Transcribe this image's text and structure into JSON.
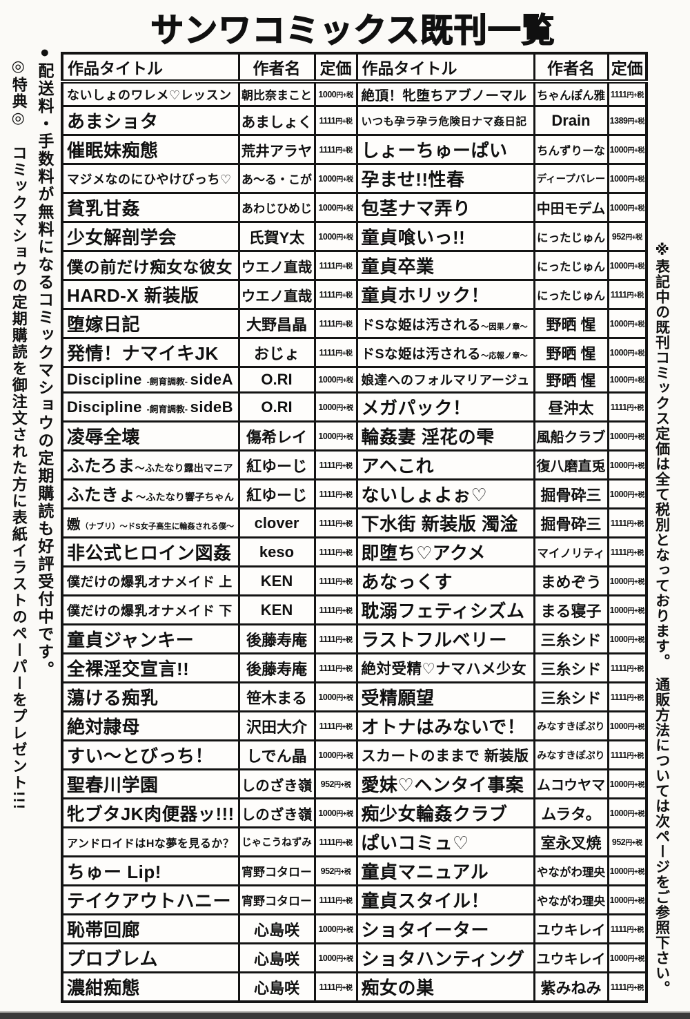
{
  "page_title": "サンワコミックス既刊一覧",
  "headers": {
    "title": "作品タイトル",
    "author": "作者名",
    "price": "定価"
  },
  "side_notes": {
    "left_inner": "●配送料・手数料が無料になるコミックマショウの定期購読も好評受付中です。",
    "left_outer": "◎特典◎　コミックマショウの定期購読を御注文された方に表紙イラストのペーパーをプレゼント!!!",
    "right": "※表記中の既刊コミックス定価は全て税別となっております。　通販方法については次ページをご参照下さい。"
  },
  "left_rows": [
    {
      "title_parts": [
        [
          "ないしょのワレメ♡レッスン",
          0
        ]
      ],
      "author": "朝比奈まこと",
      "price": "1000円+税"
    },
    {
      "title_parts": [
        [
          "あまショタ",
          0
        ]
      ],
      "author": "あましょく",
      "price": "1111円+税"
    },
    {
      "title_parts": [
        [
          "催眠妹痴態",
          0
        ]
      ],
      "author": "荒井アラヤ",
      "price": "1111円+税"
    },
    {
      "title_parts": [
        [
          "マジメなのにひやけびっち♡",
          0
        ]
      ],
      "author": "あ〜る・こが",
      "price": "1000円+税"
    },
    {
      "title_parts": [
        [
          "貧乳甘姦",
          0
        ]
      ],
      "author": "あわじひめじ",
      "price": "1000円+税"
    },
    {
      "title_parts": [
        [
          "少女解剖学会",
          0
        ]
      ],
      "author": "氏賀Y太",
      "price": "1000円+税"
    },
    {
      "title_parts": [
        [
          "僕の前だけ痴女な彼女",
          0
        ]
      ],
      "author": "ウエノ直哉",
      "price": "1111円+税"
    },
    {
      "title_parts": [
        [
          "HARD-X 新装版",
          0
        ]
      ],
      "author": "ウエノ直哉",
      "price": "1111円+税"
    },
    {
      "title_parts": [
        [
          "堕嫁日記",
          0
        ]
      ],
      "author": "大野昌晶",
      "price": "1111円+税"
    },
    {
      "title_parts": [
        [
          "発情！ナマイキJK",
          0
        ]
      ],
      "author": "おじょ",
      "price": "1111円+税"
    },
    {
      "title_parts": [
        [
          "Discipline ",
          0
        ],
        [
          "-飼育調教- ",
          1
        ],
        [
          "sideA",
          0
        ]
      ],
      "author": "O.RI",
      "price": "1000円+税"
    },
    {
      "title_parts": [
        [
          "Discipline ",
          0
        ],
        [
          "-飼育調教- ",
          1
        ],
        [
          "sideB",
          0
        ]
      ],
      "author": "O.RI",
      "price": "1000円+税"
    },
    {
      "title_parts": [
        [
          "凌辱全壊",
          0
        ]
      ],
      "author": "傷希レイ",
      "price": "1000円+税"
    },
    {
      "title_parts": [
        [
          "ふたろま",
          0
        ],
        [
          "〜ふたなり露出マニア",
          1
        ]
      ],
      "author": "紅ゆーじ",
      "price": "1111円+税"
    },
    {
      "title_parts": [
        [
          "ふたきょ",
          0
        ],
        [
          "〜ふたなり響子ちゃん",
          1
        ]
      ],
      "author": "紅ゆーじ",
      "price": "1111円+税"
    },
    {
      "title_parts": [
        [
          "嫐",
          0
        ],
        [
          "（ナブリ）〜ドS女子高生に輪姦される僕〜",
          1
        ]
      ],
      "author": "clover",
      "price": "1111円+税"
    },
    {
      "title_parts": [
        [
          "非公式ヒロイン図姦",
          0
        ]
      ],
      "author": "keso",
      "price": "1111円+税"
    },
    {
      "title_parts": [
        [
          "僕だけの爆乳オナメイド 上",
          0
        ]
      ],
      "author": "KEN",
      "price": "1111円+税"
    },
    {
      "title_parts": [
        [
          "僕だけの爆乳オナメイド 下",
          0
        ]
      ],
      "author": "KEN",
      "price": "1111円+税"
    },
    {
      "title_parts": [
        [
          "童貞ジャンキー",
          0
        ]
      ],
      "author": "後藤寿庵",
      "price": "1111円+税"
    },
    {
      "title_parts": [
        [
          "全裸淫交宣言!!",
          0
        ]
      ],
      "author": "後藤寿庵",
      "price": "1111円+税"
    },
    {
      "title_parts": [
        [
          "蕩ける痴乳",
          0
        ]
      ],
      "author": "笹木まる",
      "price": "1000円+税"
    },
    {
      "title_parts": [
        [
          "絶対隷母",
          0
        ]
      ],
      "author": "沢田大介",
      "price": "1111円+税"
    },
    {
      "title_parts": [
        [
          "すい〜とびっち！",
          0
        ]
      ],
      "author": "しでん晶",
      "price": "1000円+税"
    },
    {
      "title_parts": [
        [
          "聖春川学園",
          0
        ]
      ],
      "author": "しのざき嶺",
      "price": "952円+税"
    },
    {
      "title_parts": [
        [
          "牝ブタJK肉便器ッ!!!",
          0
        ]
      ],
      "author": "しのざき嶺",
      "price": "1000円+税"
    },
    {
      "title_parts": [
        [
          "アンドロイドはHな夢を見るか？",
          0
        ]
      ],
      "author": "じゃこうねずみ",
      "price": "1111円+税"
    },
    {
      "title_parts": [
        [
          "ちゅー Lip!",
          0
        ]
      ],
      "author": "宵野コタロー",
      "price": "952円+税"
    },
    {
      "title_parts": [
        [
          "テイクアウトハニー",
          0
        ]
      ],
      "author": "宵野コタロー",
      "price": "1111円+税"
    },
    {
      "title_parts": [
        [
          "恥帯回廊",
          0
        ]
      ],
      "author": "心島咲",
      "price": "1000円+税"
    },
    {
      "title_parts": [
        [
          "プロブレム",
          0
        ]
      ],
      "author": "心島咲",
      "price": "1000円+税"
    },
    {
      "title_parts": [
        [
          "濃紺痴態",
          0
        ]
      ],
      "author": "心島咲",
      "price": "1111円+税"
    }
  ],
  "right_rows": [
    {
      "title_parts": [
        [
          "絶頂！牝堕ちアブノーマル",
          0
        ]
      ],
      "author": "ちゃんぽん雅",
      "price": "1111円+税"
    },
    {
      "title_parts": [
        [
          "いつも孕ラ孕ラ危険日ナマ姦日記",
          0
        ]
      ],
      "author": "Drain",
      "price": "1389円+税"
    },
    {
      "title_parts": [
        [
          "しょーちゅーぱい",
          0
        ]
      ],
      "author": "ちんずりーな",
      "price": "1000円+税"
    },
    {
      "title_parts": [
        [
          "孕ませ!!性春",
          0
        ]
      ],
      "author": "ディープバレー",
      "price": "1000円+税"
    },
    {
      "title_parts": [
        [
          "包茎ナマ弄り",
          0
        ]
      ],
      "author": "中田モデム",
      "price": "1000円+税"
    },
    {
      "title_parts": [
        [
          "童貞喰いっ!!",
          0
        ]
      ],
      "author": "にったじゅん",
      "price": "952円+税"
    },
    {
      "title_parts": [
        [
          "童貞卒業",
          0
        ]
      ],
      "author": "にったじゅん",
      "price": "1000円+税"
    },
    {
      "title_parts": [
        [
          "童貞ホリック！",
          0
        ]
      ],
      "author": "にったじゅん",
      "price": "1111円+税"
    },
    {
      "title_parts": [
        [
          "ドSな姫は汚される",
          0
        ],
        [
          "〜因果ノ章〜",
          1
        ]
      ],
      "author": "野晒 惺",
      "price": "1000円+税"
    },
    {
      "title_parts": [
        [
          "ドSな姫は汚される",
          0
        ],
        [
          "〜応報ノ章〜",
          1
        ]
      ],
      "author": "野晒 惺",
      "price": "1000円+税"
    },
    {
      "title_parts": [
        [
          "娘達へのフォルマリアージュ",
          0
        ]
      ],
      "author": "野晒 惺",
      "price": "1000円+税"
    },
    {
      "title_parts": [
        [
          "メガパック！",
          0
        ]
      ],
      "author": "昼沖太",
      "price": "1111円+税"
    },
    {
      "title_parts": [
        [
          "輪姦妻 淫花の雫",
          0
        ]
      ],
      "author": "風船クラブ",
      "price": "1000円+税"
    },
    {
      "title_parts": [
        [
          "アヘこれ",
          0
        ]
      ],
      "author": "復八磨直兎",
      "price": "1000円+税"
    },
    {
      "title_parts": [
        [
          "ないしょよぉ♡",
          0
        ]
      ],
      "author": "掘骨砕三",
      "price": "1000円+税"
    },
    {
      "title_parts": [
        [
          "下水街 新装版 濁淦",
          0
        ]
      ],
      "author": "掘骨砕三",
      "price": "1111円+税"
    },
    {
      "title_parts": [
        [
          "即堕ち♡アクメ",
          0
        ]
      ],
      "author": "マイノリティ",
      "price": "1111円+税"
    },
    {
      "title_parts": [
        [
          "あなっくす",
          0
        ]
      ],
      "author": "まめぞう",
      "price": "1000円+税"
    },
    {
      "title_parts": [
        [
          "耽溺フェティシズム",
          0
        ]
      ],
      "author": "まる寝子",
      "price": "1000円+税"
    },
    {
      "title_parts": [
        [
          "ラストフルベリー",
          0
        ]
      ],
      "author": "三糸シド",
      "price": "1000円+税"
    },
    {
      "title_parts": [
        [
          "絶対受精♡ナマハメ少女",
          0
        ]
      ],
      "author": "三糸シド",
      "price": "1111円+税"
    },
    {
      "title_parts": [
        [
          "受精願望",
          0
        ]
      ],
      "author": "三糸シド",
      "price": "1111円+税"
    },
    {
      "title_parts": [
        [
          "オトナはみないで！",
          0
        ]
      ],
      "author": "みなすきぽぷり",
      "price": "1000円+税"
    },
    {
      "title_parts": [
        [
          "スカートのままで 新装版",
          0
        ]
      ],
      "author": "みなすきぽぷり",
      "price": "1111円+税"
    },
    {
      "title_parts": [
        [
          "愛妹♡ヘンタイ事案",
          0
        ]
      ],
      "author": "ムコウヤマ",
      "price": "1000円+税"
    },
    {
      "title_parts": [
        [
          "痴少女輪姦クラブ",
          0
        ]
      ],
      "author": "ムラタ。",
      "price": "1000円+税"
    },
    {
      "title_parts": [
        [
          "ぱいコミュ♡",
          0
        ]
      ],
      "author": "室永叉焼",
      "price": "952円+税"
    },
    {
      "title_parts": [
        [
          "童貞マニュアル",
          0
        ]
      ],
      "author": "やながわ理央",
      "price": "1000円+税"
    },
    {
      "title_parts": [
        [
          "童貞スタイル！",
          0
        ]
      ],
      "author": "やながわ理央",
      "price": "1000円+税"
    },
    {
      "title_parts": [
        [
          "ショタイーター",
          0
        ]
      ],
      "author": "ユウキレイ",
      "price": "1111円+税"
    },
    {
      "title_parts": [
        [
          "ショタハンティング",
          0
        ]
      ],
      "author": "ユウキレイ",
      "price": "1000円+税"
    },
    {
      "title_parts": [
        [
          "痴女の巣",
          0
        ]
      ],
      "author": "紫みねみ",
      "price": "1111円+税"
    }
  ]
}
